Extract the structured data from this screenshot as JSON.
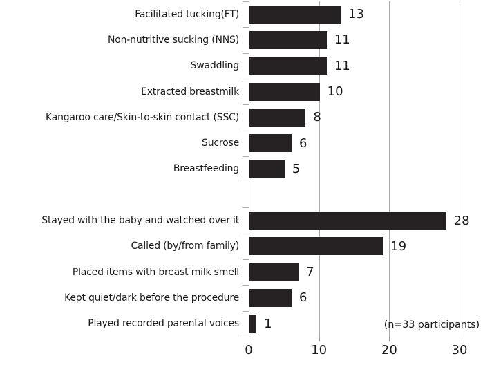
{
  "chart_data": {
    "type": "bar",
    "orientation": "horizontal",
    "title": "",
    "xlabel": "",
    "ylabel": "",
    "categories": [
      "Facilitated tucking(FT)",
      "Non-nutritive sucking (NNS)",
      "Swaddling",
      "Extracted breastmilk",
      "Kangaroo care/Skin-to-skin contact (SSC)",
      "Sucrose",
      "Breastfeeding",
      "",
      "Stayed with the baby and watched over it",
      "Called (by/from family)",
      "Placed items with breast milk smell",
      "Kept quiet/dark before the procedure",
      "Played recorded parental voices"
    ],
    "values": [
      13,
      11,
      11,
      10,
      8,
      6,
      5,
      null,
      28,
      19,
      7,
      6,
      1
    ],
    "xlim": [
      0,
      30
    ],
    "x_ticks": [
      0,
      10,
      20,
      30
    ],
    "grid": true,
    "legend": false,
    "annotation": "(n=33 participants)",
    "bar_color": "#262223",
    "grid_color": "#ababab",
    "text_color": "#1a1a1a",
    "background_color": "#ffffff"
  }
}
